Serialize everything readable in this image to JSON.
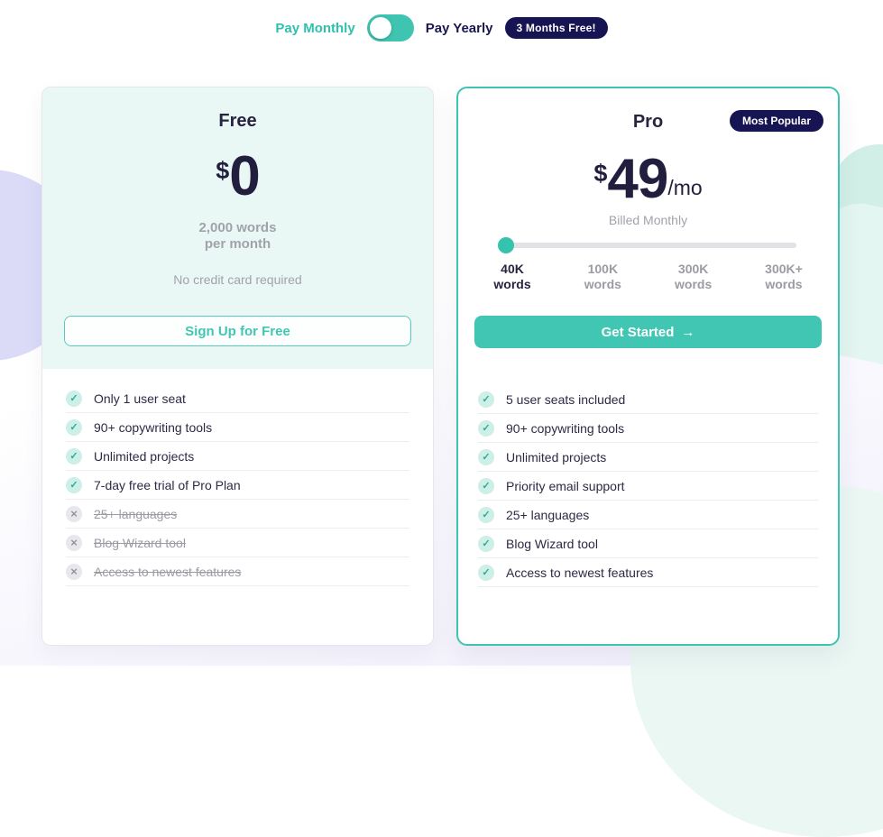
{
  "billing_toggle": {
    "monthly": "Pay Monthly",
    "yearly": "Pay Yearly",
    "badge": "3 Months Free!"
  },
  "free_plan": {
    "name": "Free",
    "currency": "$",
    "price": "0",
    "allowance_line1": "2,000 words",
    "allowance_line2": "per month",
    "note": "No credit card required",
    "cta": "Sign Up for Free",
    "features": [
      {
        "label": "Only 1 user seat",
        "included": true
      },
      {
        "label": "90+ copywriting tools",
        "included": true
      },
      {
        "label": "Unlimited projects",
        "included": true
      },
      {
        "label": "7-day free trial of Pro Plan",
        "included": true
      },
      {
        "label": "25+ languages",
        "included": false
      },
      {
        "label": "Blog Wizard tool",
        "included": false
      },
      {
        "label": "Access to newest features",
        "included": false
      }
    ]
  },
  "pro_plan": {
    "name": "Pro",
    "badge": "Most Popular",
    "currency": "$",
    "price": "49",
    "period": "/mo",
    "billing_note": "Billed Monthly",
    "slider": {
      "value_index": 0,
      "options": [
        {
          "amount": "40K",
          "unit": "words"
        },
        {
          "amount": "100K",
          "unit": "words"
        },
        {
          "amount": "300K",
          "unit": "words"
        },
        {
          "amount": "300K+",
          "unit": "words"
        }
      ]
    },
    "cta": "Get Started",
    "cta_arrow": "→",
    "features": [
      {
        "label": "5 user seats included",
        "included": true
      },
      {
        "label": "90+ copywriting tools",
        "included": true
      },
      {
        "label": "Unlimited projects",
        "included": true
      },
      {
        "label": "Priority email support",
        "included": true
      },
      {
        "label": "25+ languages",
        "included": true
      },
      {
        "label": "Blog Wizard tool",
        "included": true
      },
      {
        "label": "Access to newest features",
        "included": true
      }
    ]
  },
  "colors": {
    "accent_teal": "#3FC4B1",
    "navy_badge": "#171453",
    "text_dark": "#26243F",
    "text_gray": "#9B9BA3",
    "free_header_bg": "#E9F8F5"
  }
}
